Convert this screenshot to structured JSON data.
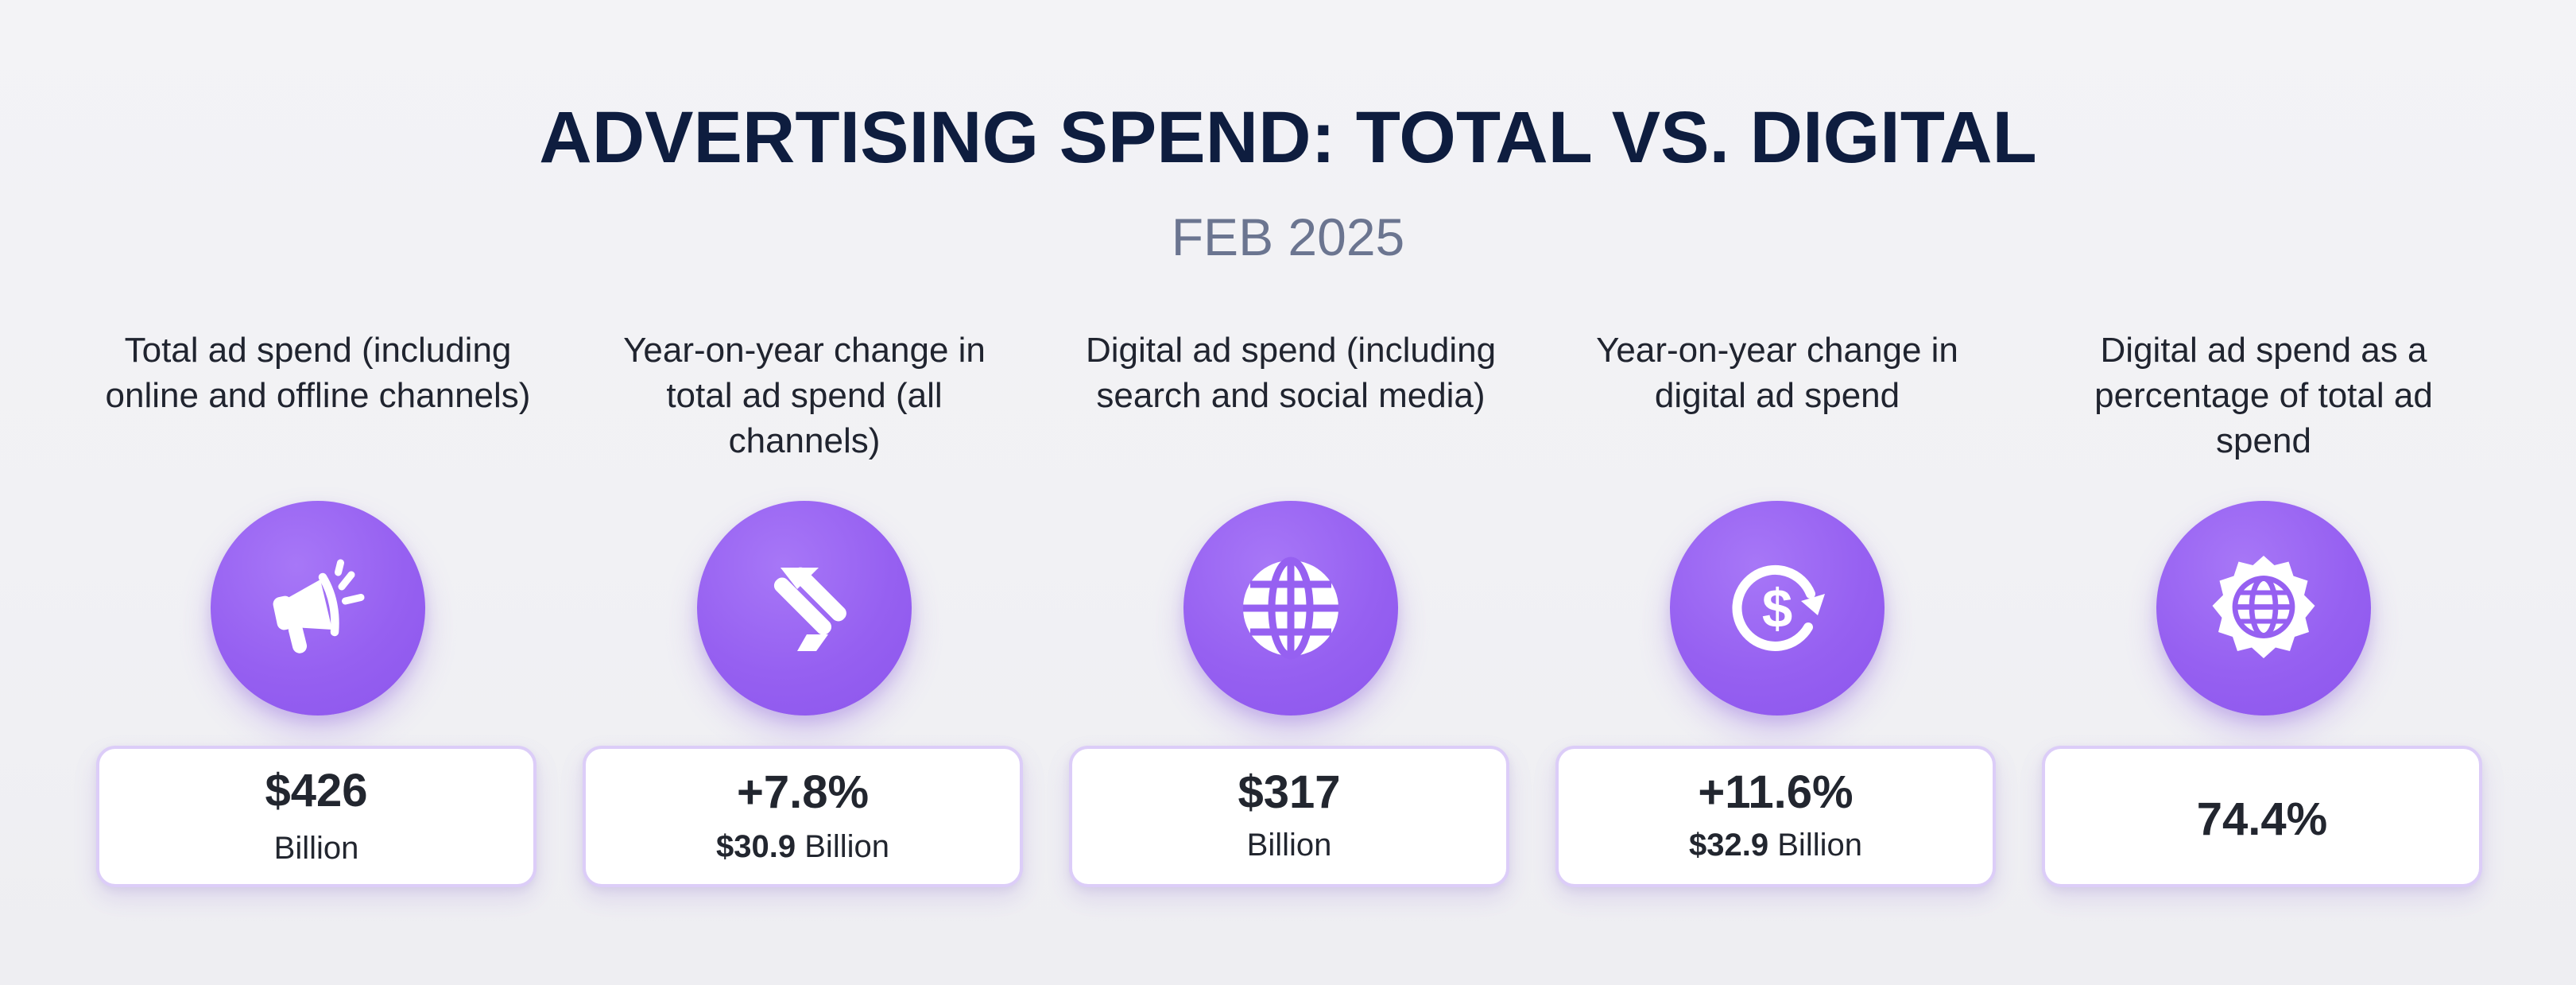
{
  "header": {
    "title": "ADVERTISING SPEND: TOTAL VS. DIGITAL",
    "subtitle": "FEB 2025"
  },
  "accent_color": "#9660f1",
  "cards": [
    {
      "label": "Total ad spend (including online and offline channels)",
      "icon": "megaphone-icon",
      "value": "$426",
      "unit": "Billion"
    },
    {
      "label": "Year-on-year change in total ad spend (all channels)",
      "icon": "trend-down-arrow-icon",
      "value": "+7.8%",
      "sub_value": "$30.9",
      "unit": "Billion"
    },
    {
      "label": "Digital ad spend (including search and social media)",
      "icon": "globe-icon",
      "value": "$317",
      "unit": "Billion"
    },
    {
      "label": "Year-on-year change in digital ad spend",
      "icon": "dollar-cycle-icon",
      "value": "+11.6%",
      "sub_value": "$32.9",
      "unit": "Billion"
    },
    {
      "label": "Digital ad spend as a percentage of total ad spend",
      "icon": "globe-badge-icon",
      "value": "74.4%"
    }
  ]
}
